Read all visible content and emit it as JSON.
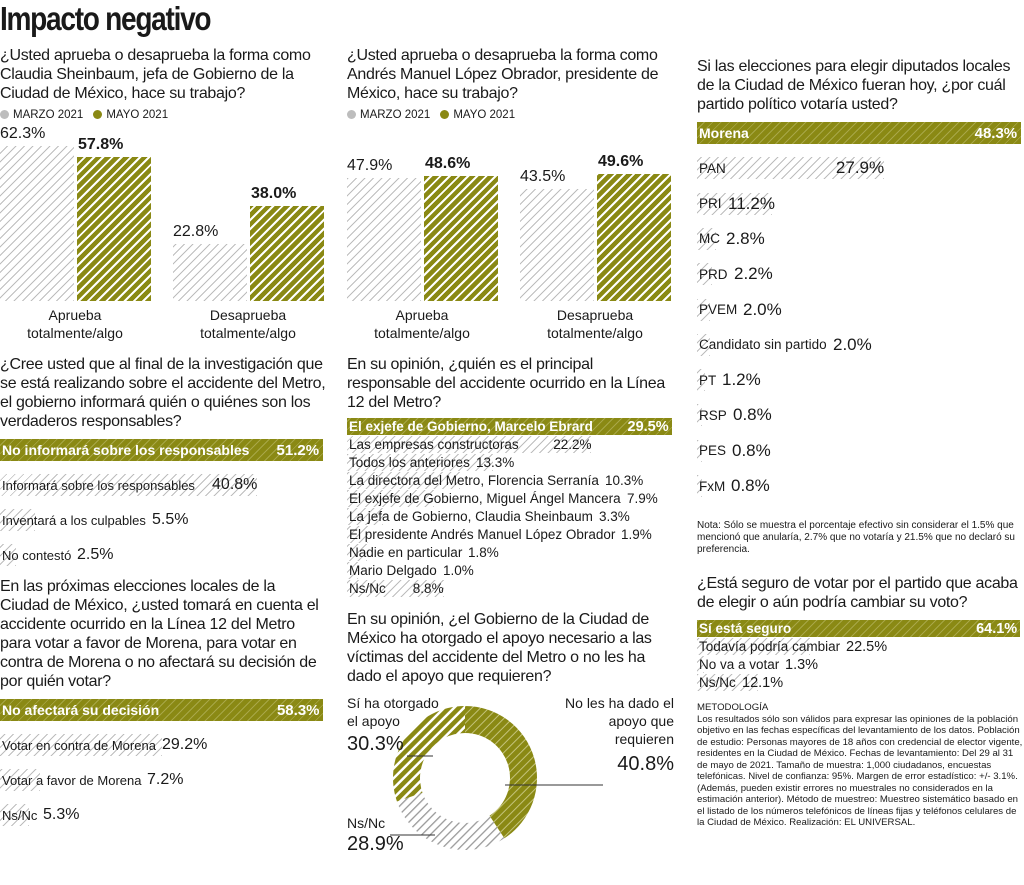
{
  "title": "Impacto negativo",
  "legend": {
    "marzo": "MARZO 2021",
    "mayo": "MAYO 2021"
  },
  "colors": {
    "olive": "#8a8914",
    "gray": "#bdbdbd"
  },
  "q1": "¿Usted aprueba o desaprueba la forma como Claudia Sheinbaum, jefa de Gobierno de la Ciudad de México, hace su trabajo?",
  "q2": "¿Usted aprueba o desaprueba la forma como Andrés Manuel López Obrador, presidente de México, hace su trabajo?",
  "q3": "Si las elecciones para elegir diputados locales de la Ciudad de México fueran hoy, ¿por cuál partido político votaría usted?",
  "q4": "¿Cree usted que al final de la investigación que se está realizando sobre el accidente del Metro, el gobierno informará quién o quiénes son los verdaderos responsables?",
  "q5": "En su opinión, ¿quién es el principal responsable del accidente ocurrido en la Línea 12 del Metro?",
  "q6": "En las próximas elecciones locales de la Ciudad de México, ¿usted tomará en cuenta el accidente ocurrido en la Línea 12 del Metro  para votar a favor de Morena, para votar en contra de Morena o no afectará su decisión de por quién votar?",
  "q7": "En su opinión, ¿el Gobierno de la Ciudad de México ha otorgado el apoyo necesario a las víctimas del accidente del Metro o no les ha dado el apoyo que requieren?",
  "q8": "¿Está seguro de votar por el partido que acaba de elegir o aún podría cambiar su voto?",
  "nota": "Nota: Sólo se muestra el porcentaje efectivo sin considerar el 1.5% que mencionó que anularía, 2.7% que no votaría y 21.5% que no declaró su preferencia.",
  "metodologia_title": "METODOLOGÍA",
  "metodologia": "Los resultados sólo son válidos para expresar las opiniones de la población objetivo en las fechas específicas del levantamiento de los datos. Población de estudio: Personas mayores de 18 años con credencial de elector vigente, residentes en la Ciudad de México. Fechas de levantamiento: Del 29 al 31 de mayo de 2021. Tamaño de muestra: 1,000 ciudadanos, encuestas telefónicas. Nivel de confianza: 95%. Margen de error estadístico: +/- 3.1%. (Además, pueden existir errores no muestrales no considerados en la estimación anterior). Método de muestreo: Muestreo sistemático basado en el listado de los números telefónicos de líneas fijas y teléfonos celulares de la Ciudad de México. Realización: EL UNIVERSAL.",
  "chart_data": [
    {
      "type": "bar",
      "categories": [
        "Aprueba totalmente/algo",
        "Desaprueba totalmente/algo"
      ],
      "series": [
        {
          "name": "MARZO 2021",
          "values": [
            62.3,
            22.8
          ]
        },
        {
          "name": "MAYO 2021",
          "values": [
            57.8,
            38.0
          ]
        }
      ],
      "labels": [
        [
          "62.3%",
          "22.8%"
        ],
        [
          "57.8%",
          "38.0%"
        ]
      ]
    },
    {
      "type": "bar",
      "categories": [
        "Aprueba totalmente/algo",
        "Desaprueba totalmente/algo"
      ],
      "series": [
        {
          "name": "MARZO 2021",
          "values": [
            47.9,
            43.5
          ]
        },
        {
          "name": "MAYO 2021",
          "values": [
            48.6,
            49.6
          ]
        }
      ],
      "labels": [
        [
          "47.9%",
          "43.5%"
        ],
        [
          "48.6%",
          "49.6%"
        ]
      ]
    },
    {
      "type": "bar",
      "orientation": "horizontal",
      "categories": [
        "Morena",
        "PAN",
        "PRI",
        "MC",
        "PRD",
        "PVEM",
        "Candidato sin partido",
        "PT",
        "RSP",
        "PES",
        "FxM"
      ],
      "values": [
        48.3,
        27.9,
        11.2,
        2.8,
        2.2,
        2.0,
        2.0,
        1.2,
        0.8,
        0.8,
        0.8
      ],
      "labels": [
        "48.3%",
        "27.9%",
        "11.2%",
        "2.8%",
        "2.2%",
        "2.0%",
        "2.0%",
        "1.2%",
        "0.8%",
        "0.8%",
        "0.8%"
      ]
    },
    {
      "type": "bar",
      "orientation": "horizontal",
      "categories": [
        "No informará sobre los responsables",
        "Informará sobre los responsables",
        "Inventará a los culpables",
        "No contestó"
      ],
      "values": [
        51.2,
        40.8,
        5.5,
        2.5
      ],
      "labels": [
        "51.2%",
        "40.8%",
        "5.5%",
        "2.5%"
      ]
    },
    {
      "type": "bar",
      "orientation": "horizontal",
      "categories": [
        "El exjefe de Gobierno, Marcelo Ebrard",
        "Las empresas constructoras",
        "Todos los anteriores",
        "La directora del Metro, Florencia Serranía",
        "El exjefe de Gobierno, Miguel Ángel Mancera",
        "La jefa de Gobierno, Claudia Sheinbaum",
        "El presidente Andrés Manuel López Obrador",
        "Nadie en particular",
        "Mario Delgado",
        "Ns/Nc"
      ],
      "values": [
        29.5,
        22.2,
        13.3,
        10.3,
        7.9,
        3.3,
        1.9,
        1.8,
        1.0,
        8.8
      ],
      "labels": [
        "29.5%",
        "22.2%",
        "13.3%",
        "10.3%",
        "7.9%",
        "3.3%",
        "1.9%",
        "1.8%",
        "1.0%",
        "8.8%"
      ]
    },
    {
      "type": "bar",
      "orientation": "horizontal",
      "categories": [
        "No afectará su decisión",
        "Votar en contra de Morena",
        "Votar a favor de Morena",
        "Ns/Nc"
      ],
      "values": [
        58.3,
        29.2,
        7.2,
        5.3
      ],
      "labels": [
        "58.3%",
        "29.2%",
        "7.2%",
        "5.3%"
      ]
    },
    {
      "type": "pie",
      "variant": "donut",
      "categories": [
        "No les ha dado el apoyo que requieren",
        "Ns/Nc",
        "Sí ha otorgado el apoyo"
      ],
      "values": [
        40.8,
        28.9,
        30.3
      ],
      "labels": [
        "40.8%",
        "28.9%",
        "30.3%"
      ]
    },
    {
      "type": "bar",
      "orientation": "horizontal",
      "categories": [
        "Sí está seguro",
        "Todavía podría cambiar",
        "No va a votar",
        "Ns/Nc"
      ],
      "values": [
        64.1,
        22.5,
        1.3,
        12.1
      ],
      "labels": [
        "64.1%",
        "22.5%",
        "1.3%",
        "12.1%"
      ]
    }
  ]
}
